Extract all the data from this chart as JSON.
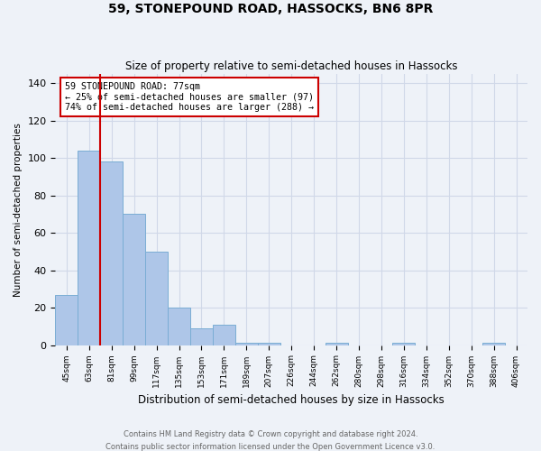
{
  "title": "59, STONEPOUND ROAD, HASSOCKS, BN6 8PR",
  "subtitle": "Size of property relative to semi-detached houses in Hassocks",
  "xlabel": "Distribution of semi-detached houses by size in Hassocks",
  "ylabel": "Number of semi-detached properties",
  "footnote1": "Contains HM Land Registry data © Crown copyright and database right 2024.",
  "footnote2": "Contains public sector information licensed under the Open Government Licence v3.0.",
  "bin_labels": [
    "45sqm",
    "63sqm",
    "81sqm",
    "99sqm",
    "117sqm",
    "135sqm",
    "153sqm",
    "171sqm",
    "189sqm",
    "207sqm",
    "226sqm",
    "244sqm",
    "262sqm",
    "280sqm",
    "298sqm",
    "316sqm",
    "334sqm",
    "352sqm",
    "370sqm",
    "388sqm",
    "406sqm"
  ],
  "bin_values": [
    27,
    104,
    98,
    70,
    50,
    20,
    9,
    11,
    1,
    1,
    0,
    0,
    1,
    0,
    0,
    1,
    0,
    0,
    0,
    1,
    0
  ],
  "bar_color": "#aec6e8",
  "bar_edge_color": "#7aadd4",
  "grid_color": "#d0d8e8",
  "background_color": "#eef2f8",
  "vline_x": 1.5,
  "vline_color": "#cc0000",
  "annotation_text": "59 STONEPOUND ROAD: 77sqm\n← 25% of semi-detached houses are smaller (97)\n74% of semi-detached houses are larger (288) →",
  "annotation_box_color": "white",
  "annotation_box_edge": "#cc0000",
  "ylim": [
    0,
    145
  ],
  "yticks": [
    0,
    20,
    40,
    60,
    80,
    100,
    120,
    140
  ]
}
